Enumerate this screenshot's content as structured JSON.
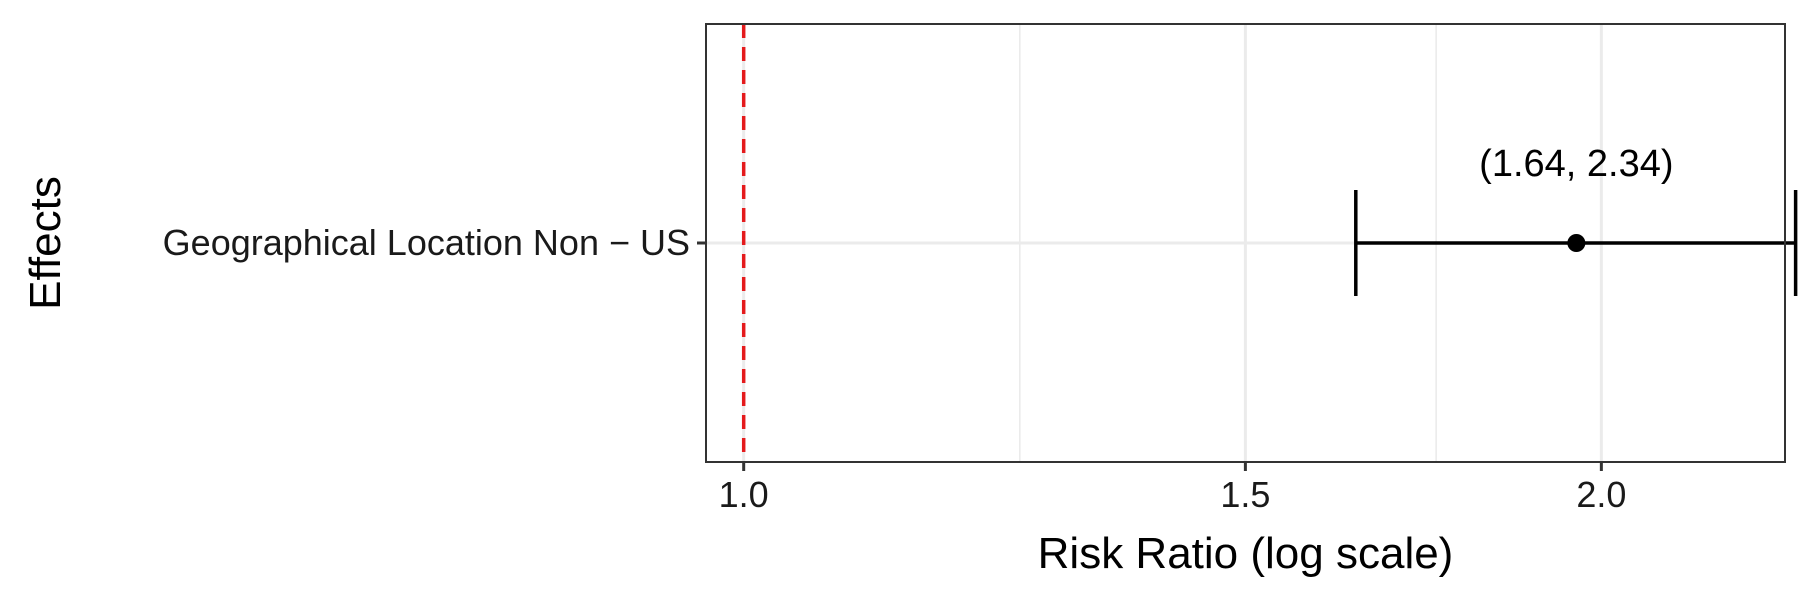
{
  "chart_data": {
    "type": "forest",
    "xlabel": "Risk Ratio (log scale)",
    "ylabel": "Effects",
    "x_scale": "log",
    "xlim": [
      0.97,
      2.32
    ],
    "x_ticks": [
      1.0,
      1.5,
      2.0
    ],
    "x_tick_labels": [
      "1.0",
      "1.5",
      "2.0"
    ],
    "x_minor_gridlines": [
      1.25,
      1.75
    ],
    "reference_line": 1.0,
    "grid": true,
    "rows": [
      {
        "label": "Geographical Location Non − US",
        "estimate": 1.96,
        "ci_low": 1.64,
        "ci_high": 2.34,
        "ci_text": "(1.64, 2.34)"
      }
    ]
  },
  "colors": {
    "reference_line": "#e41a1c",
    "grid": "#ebebeb",
    "frame": "#333333",
    "marks": "#000000"
  }
}
